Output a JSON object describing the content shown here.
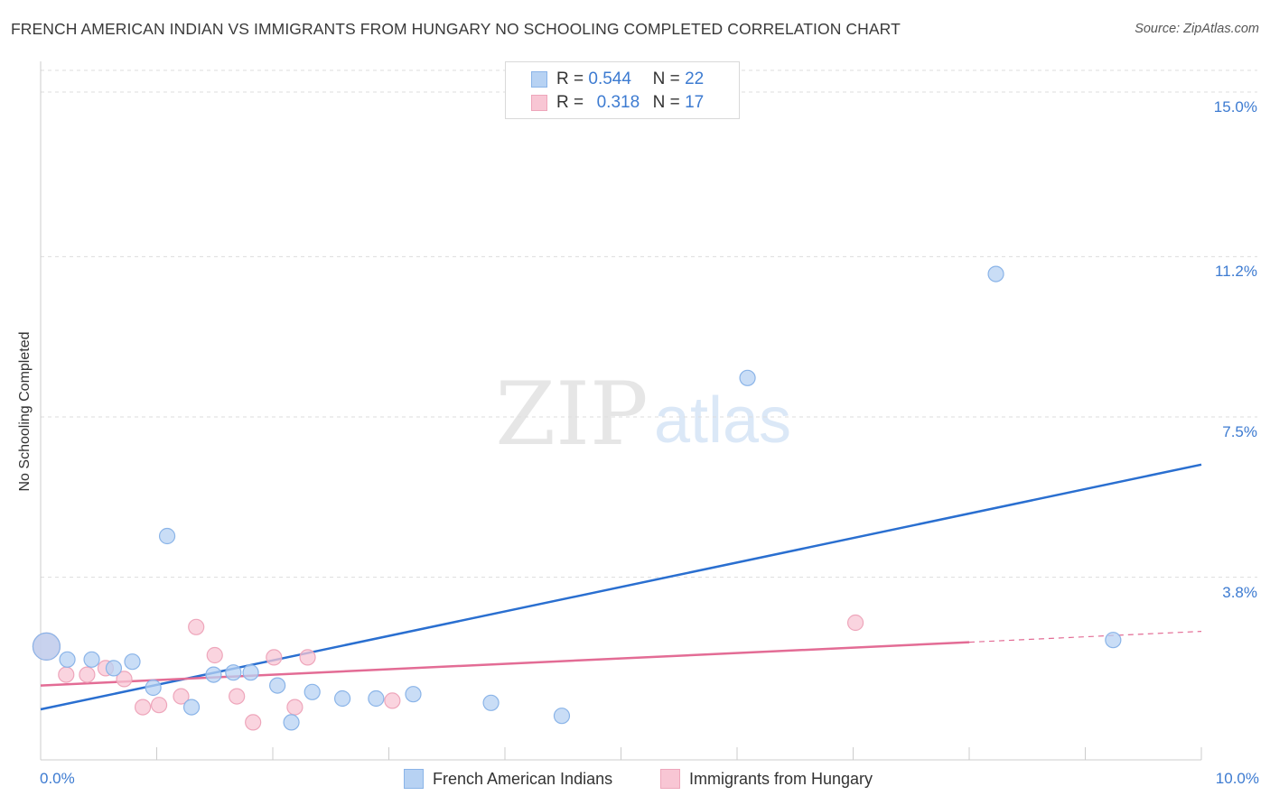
{
  "title": "FRENCH AMERICAN INDIAN VS IMMIGRANTS FROM HUNGARY NO SCHOOLING COMPLETED CORRELATION CHART",
  "source": "Source: ZipAtlas.com",
  "watermark": {
    "zip": "ZIP",
    "atlas": "atlas"
  },
  "legend": {
    "rows": [
      {
        "r_label": "R =",
        "r_value": "0.544",
        "n_label": "N =",
        "n_value": "22"
      },
      {
        "r_label": "R =",
        "r_value": "0.318",
        "n_label": "N =",
        "n_value": "17"
      }
    ]
  },
  "colors": {
    "blue_fill": "#b7d2f3",
    "blue_stroke": "#8ab4e8",
    "blue_line": "#2a6fd0",
    "pink_fill": "#f8c6d4",
    "pink_stroke": "#eea6bb",
    "pink_line": "#e36c95",
    "tick_text": "#3d7bd1",
    "grid": "#dddddd"
  },
  "chart_data": {
    "type": "scatter",
    "title": "FRENCH AMERICAN INDIAN VS IMMIGRANTS FROM HUNGARY NO SCHOOLING COMPLETED CORRELATION CHART",
    "xlabel": "",
    "ylabel": "No Schooling Completed",
    "xlim": [
      0,
      10
    ],
    "ylim": [
      0,
      15.5
    ],
    "x_tick_labels": [
      "0.0%",
      "10.0%"
    ],
    "y_ticks": [
      3.8,
      7.5,
      11.2,
      15.0
    ],
    "y_tick_labels": [
      "3.8%",
      "7.5%",
      "11.2%",
      "15.0%"
    ],
    "grid": true,
    "legend_position": "top-center",
    "series": [
      {
        "name": "French American Indians",
        "color": "#8ab4e8",
        "r": 0.544,
        "n": 22,
        "points": [
          {
            "x": 0.05,
            "y": 2.2
          },
          {
            "x": 0.23,
            "y": 1.9
          },
          {
            "x": 0.44,
            "y": 1.9
          },
          {
            "x": 0.63,
            "y": 1.7
          },
          {
            "x": 0.79,
            "y": 1.85
          },
          {
            "x": 0.97,
            "y": 1.25
          },
          {
            "x": 1.09,
            "y": 4.75
          },
          {
            "x": 1.3,
            "y": 0.8
          },
          {
            "x": 1.49,
            "y": 1.55
          },
          {
            "x": 1.66,
            "y": 1.6
          },
          {
            "x": 1.81,
            "y": 1.6
          },
          {
            "x": 2.04,
            "y": 1.3
          },
          {
            "x": 2.16,
            "y": 0.45
          },
          {
            "x": 2.34,
            "y": 1.15
          },
          {
            "x": 2.6,
            "y": 1.0
          },
          {
            "x": 2.89,
            "y": 1.0
          },
          {
            "x": 3.21,
            "y": 1.1
          },
          {
            "x": 3.88,
            "y": 0.9
          },
          {
            "x": 4.49,
            "y": 0.6
          },
          {
            "x": 6.09,
            "y": 8.4
          },
          {
            "x": 8.23,
            "y": 10.8
          },
          {
            "x": 9.24,
            "y": 2.35
          }
        ],
        "trend": {
          "x0": 0,
          "y0": 0.75,
          "x1": 10,
          "y1": 6.4
        }
      },
      {
        "name": "Immigrants from Hungary",
        "color": "#eea6bb",
        "r": 0.318,
        "n": 17,
        "points": [
          {
            "x": 0.05,
            "y": 2.2
          },
          {
            "x": 0.22,
            "y": 1.55
          },
          {
            "x": 0.4,
            "y": 1.55
          },
          {
            "x": 0.56,
            "y": 1.7
          },
          {
            "x": 0.72,
            "y": 1.45
          },
          {
            "x": 0.88,
            "y": 0.8
          },
          {
            "x": 1.02,
            "y": 0.85
          },
          {
            "x": 1.21,
            "y": 1.05
          },
          {
            "x": 1.34,
            "y": 2.65
          },
          {
            "x": 1.5,
            "y": 2.0
          },
          {
            "x": 1.69,
            "y": 1.05
          },
          {
            "x": 1.83,
            "y": 0.45
          },
          {
            "x": 2.01,
            "y": 1.95
          },
          {
            "x": 2.19,
            "y": 0.8
          },
          {
            "x": 2.3,
            "y": 1.95
          },
          {
            "x": 3.03,
            "y": 0.95
          },
          {
            "x": 7.02,
            "y": 2.75
          }
        ],
        "trend": {
          "x0": 0,
          "y0": 1.3,
          "x1": 8.0,
          "y1": 2.3,
          "dash_x1": 10,
          "dash_y1": 2.55
        }
      }
    ]
  }
}
